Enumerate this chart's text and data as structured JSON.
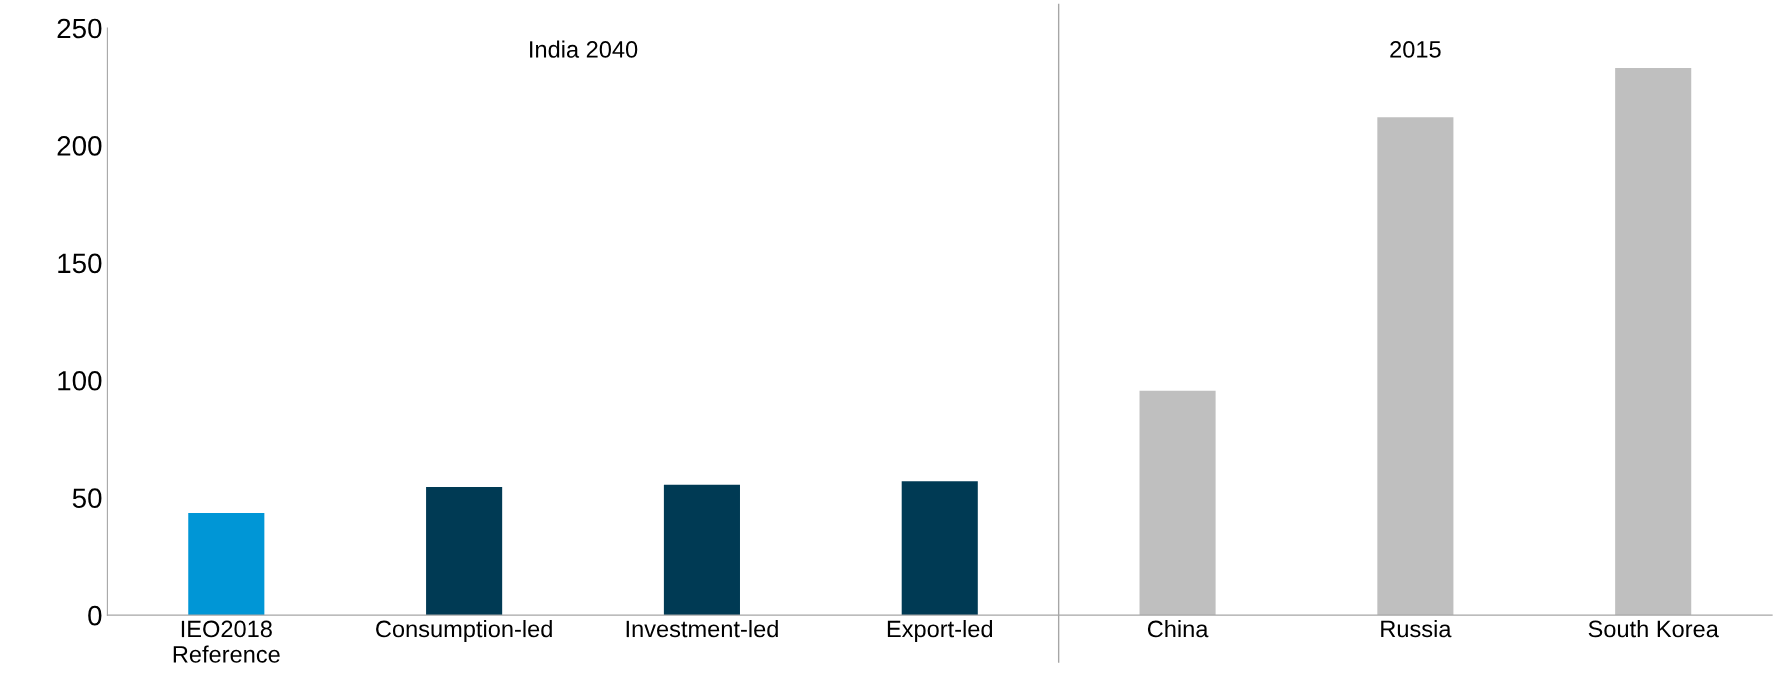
{
  "chart_data": {
    "type": "bar",
    "categories": [
      "IEO2018\nReference",
      "Consumption-led",
      "Investment-led",
      "Export-led",
      "China",
      "Russia",
      "South Korea"
    ],
    "values": [
      43.5,
      54.5,
      55.5,
      57,
      95.5,
      212,
      233
    ],
    "colors": [
      "#0096d6",
      "#003a54",
      "#003a54",
      "#003a54",
      "#bfbfbf",
      "#bfbfbf",
      "#bfbfbf"
    ],
    "ylim": [
      0,
      250
    ],
    "yticks": [
      0,
      50,
      100,
      150,
      200,
      250
    ],
    "grid": false,
    "annotations": [
      "India 2040",
      "2015"
    ]
  }
}
